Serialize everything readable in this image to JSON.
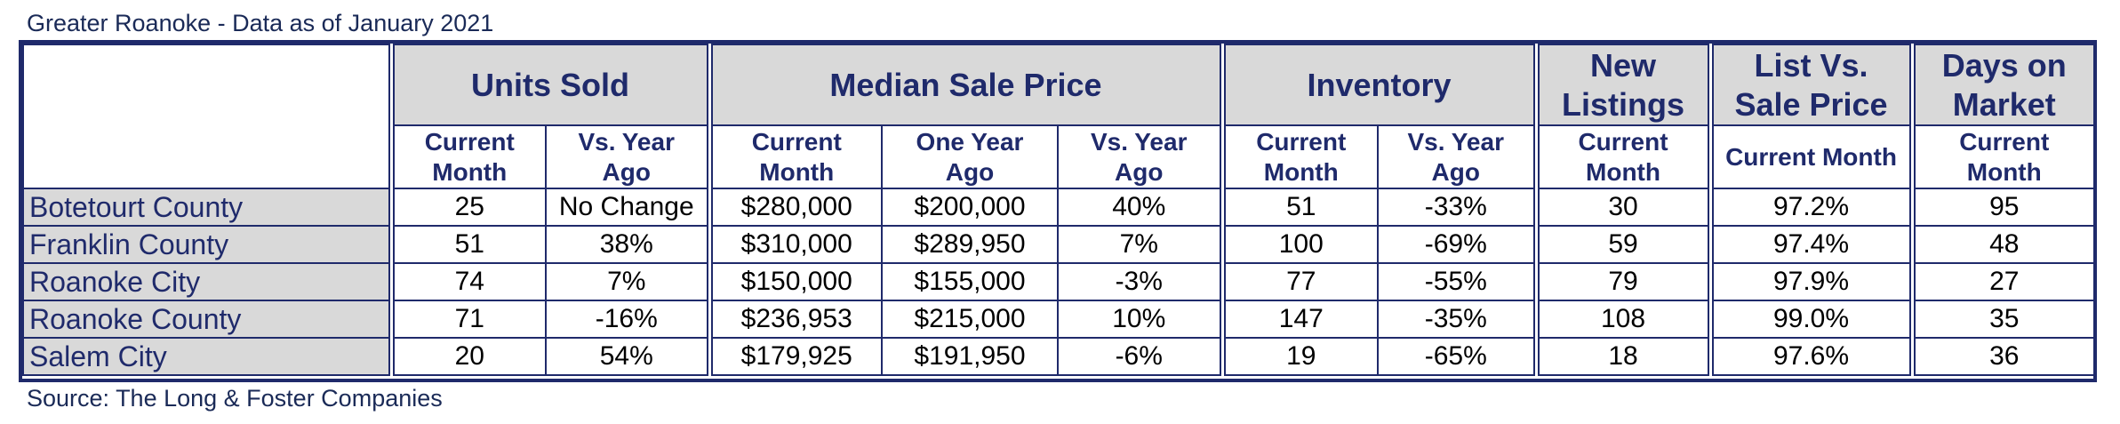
{
  "caption": "Greater Roanoke - Data as of January 2021",
  "source": "Source: The Long & Foster Companies",
  "groups": {
    "units_sold": "Units Sold",
    "median_sale_price": "Median Sale Price",
    "inventory": "Inventory",
    "new_listings_1": "New",
    "new_listings_2": "Listings",
    "list_vs_sale_1": "List Vs.",
    "list_vs_sale_2": "Sale Price",
    "days_on_market_1": "Days on",
    "days_on_market_2": "Market"
  },
  "subheaders": {
    "current_1": "Current",
    "current_2": "Month",
    "vs_year_1": "Vs. Year",
    "vs_year_2": "Ago",
    "one_year_1": "One Year",
    "one_year_2": "Ago",
    "current_month": "Current Month"
  },
  "rows": [
    {
      "name": "Botetourt County",
      "units": "25",
      "units_vs": "No Change",
      "price": "$280,000",
      "price_prev": "$200,000",
      "price_vs": "40%",
      "inv": "51",
      "inv_vs": "-33%",
      "new": "30",
      "list_sale": "97.2%",
      "dom": "95"
    },
    {
      "name": "Franklin County",
      "units": "51",
      "units_vs": "38%",
      "price": "$310,000",
      "price_prev": "$289,950",
      "price_vs": "7%",
      "inv": "100",
      "inv_vs": "-69%",
      "new": "59",
      "list_sale": "97.4%",
      "dom": "48"
    },
    {
      "name": "Roanoke City",
      "units": "74",
      "units_vs": "7%",
      "price": "$150,000",
      "price_prev": "$155,000",
      "price_vs": "-3%",
      "inv": "77",
      "inv_vs": "-55%",
      "new": "79",
      "list_sale": "97.9%",
      "dom": "27"
    },
    {
      "name": "Roanoke County",
      "units": "71",
      "units_vs": "-16%",
      "price": "$236,953",
      "price_prev": "$215,000",
      "price_vs": "10%",
      "inv": "147",
      "inv_vs": "-35%",
      "new": "108",
      "list_sale": "99.0%",
      "dom": "35"
    },
    {
      "name": "Salem City",
      "units": "20",
      "units_vs": "54%",
      "price": "$179,925",
      "price_prev": "$191,950",
      "price_vs": "-6%",
      "inv": "19",
      "inv_vs": "-65%",
      "new": "18",
      "list_sale": "97.6%",
      "dom": "36"
    }
  ]
}
